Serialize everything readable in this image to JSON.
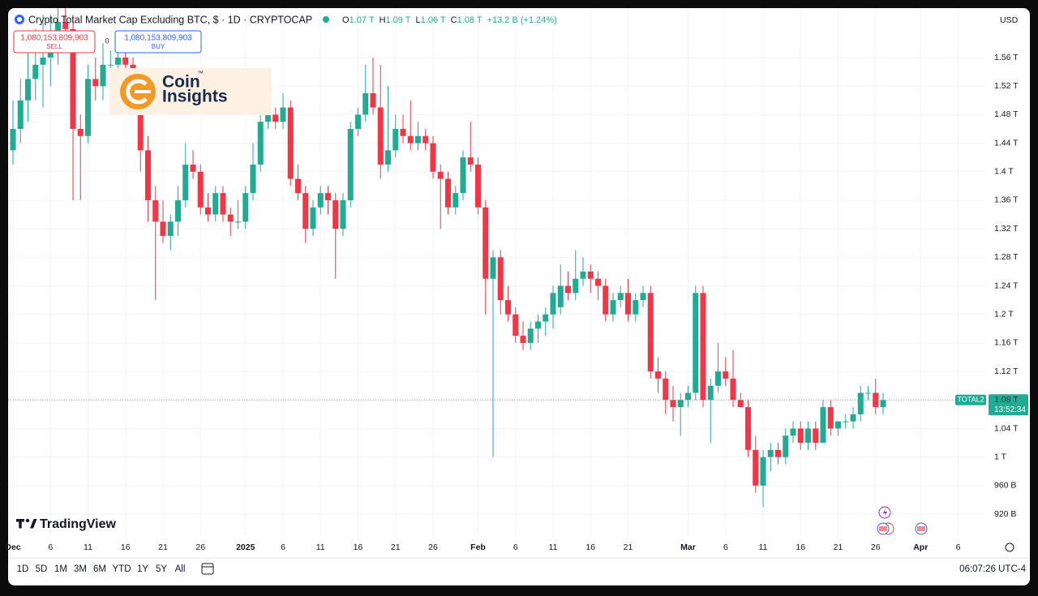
{
  "header": {
    "title": "Crypto Total Market Cap Excluding BTC, $ · 1D · CRYPTOCAP",
    "ohlc": [
      {
        "key": "O",
        "value": "1.07 T"
      },
      {
        "key": "H",
        "value": "1.09 T"
      },
      {
        "key": "L",
        "value": "1.06 T"
      },
      {
        "key": "C",
        "value": "1.08 T"
      }
    ],
    "change": "+13.2 B (+1.24%)"
  },
  "trade": {
    "sell_price": "1,080,153,809,903",
    "sell": "SELL",
    "spread": "0",
    "buy_price": "1,080,153,809,903",
    "buy": "BUY"
  },
  "watermark": {
    "line1": "Coin",
    "line2": "Insights",
    "mark": "™"
  },
  "price_scale": {
    "currency": "USD",
    "symbol": "TOTAL2",
    "last": "1.08 T",
    "countdown": "13:52:34"
  },
  "logo": "TradingView",
  "toolbar": {
    "ranges": [
      "1D",
      "5D",
      "1M",
      "3M",
      "6M",
      "YTD",
      "1Y",
      "5Y",
      "All"
    ],
    "clock": "06:07:26 UTC-4"
  },
  "chart_data": {
    "type": "candlestick",
    "up_color": "#22ab94",
    "down_color": "#f23645",
    "grid": true,
    "x": [
      "2024-12-01",
      "2024-12-02",
      "2024-12-03",
      "2024-12-04",
      "2024-12-05",
      "2024-12-06",
      "2024-12-07",
      "2024-12-08",
      "2024-12-09",
      "2024-12-10",
      "2024-12-11",
      "2024-12-12",
      "2024-12-13",
      "2024-12-14",
      "2024-12-15",
      "2024-12-16",
      "2024-12-17",
      "2024-12-18",
      "2024-12-19",
      "2024-12-20",
      "2024-12-21",
      "2024-12-22",
      "2024-12-23",
      "2024-12-24",
      "2024-12-25",
      "2024-12-26",
      "2024-12-27",
      "2024-12-28",
      "2024-12-29",
      "2024-12-30",
      "2024-12-31",
      "2025-01-01",
      "2025-01-02",
      "2025-01-03",
      "2025-01-04",
      "2025-01-05",
      "2025-01-06",
      "2025-01-07",
      "2025-01-08",
      "2025-01-09",
      "2025-01-10",
      "2025-01-11",
      "2025-01-12",
      "2025-01-13",
      "2025-01-14",
      "2025-01-15",
      "2025-01-16",
      "2025-01-17",
      "2025-01-18",
      "2025-01-19",
      "2025-01-20",
      "2025-01-21",
      "2025-01-22",
      "2025-01-23",
      "2025-01-24",
      "2025-01-25",
      "2025-01-26",
      "2025-01-27",
      "2025-01-28",
      "2025-01-29",
      "2025-01-30",
      "2025-01-31",
      "2025-02-01",
      "2025-02-02",
      "2025-02-03",
      "2025-02-04",
      "2025-02-05",
      "2025-02-06",
      "2025-02-07",
      "2025-02-08",
      "2025-02-09",
      "2025-02-10",
      "2025-02-11",
      "2025-02-12",
      "2025-02-13",
      "2025-02-14",
      "2025-02-15",
      "2025-02-16",
      "2025-02-17",
      "2025-02-18",
      "2025-02-19",
      "2025-02-20",
      "2025-02-21",
      "2025-02-22",
      "2025-02-23",
      "2025-02-24",
      "2025-02-25",
      "2025-02-26",
      "2025-02-27",
      "2025-02-28",
      "2025-03-01",
      "2025-03-02",
      "2025-03-03",
      "2025-03-04",
      "2025-03-05",
      "2025-03-06",
      "2025-03-07",
      "2025-03-08",
      "2025-03-09",
      "2025-03-10",
      "2025-03-11",
      "2025-03-12",
      "2025-03-13",
      "2025-03-14",
      "2025-03-15",
      "2025-03-16",
      "2025-03-17",
      "2025-03-18",
      "2025-03-19",
      "2025-03-20",
      "2025-03-21",
      "2025-03-22",
      "2025-03-23",
      "2025-03-24",
      "2025-03-25",
      "2025-03-26",
      "2025-03-27"
    ],
    "open": [
      1.43,
      1.46,
      1.5,
      1.53,
      1.55,
      1.56,
      1.58,
      1.61,
      1.6,
      1.46,
      1.45,
      1.53,
      1.52,
      1.55,
      1.55,
      1.56,
      1.55,
      1.52,
      1.43,
      1.36,
      1.33,
      1.31,
      1.33,
      1.36,
      1.41,
      1.4,
      1.35,
      1.34,
      1.37,
      1.34,
      1.33,
      1.33,
      1.37,
      1.41,
      1.47,
      1.48,
      1.47,
      1.49,
      1.39,
      1.37,
      1.32,
      1.35,
      1.37,
      1.36,
      1.32,
      1.36,
      1.46,
      1.48,
      1.51,
      1.49,
      1.41,
      1.43,
      1.46,
      1.45,
      1.44,
      1.45,
      1.44,
      1.4,
      1.39,
      1.35,
      1.37,
      1.42,
      1.41,
      1.35,
      1.25,
      1.28,
      1.22,
      1.2,
      1.17,
      1.16,
      1.18,
      1.19,
      1.2,
      1.21,
      1.24,
      1.23,
      1.25,
      1.26,
      1.25,
      1.24,
      1.2,
      1.22,
      1.23,
      1.2,
      1.22,
      1.23,
      1.12,
      1.11,
      1.08,
      1.07,
      1.08,
      1.09,
      1.23,
      1.08,
      1.1,
      1.12,
      1.11,
      1.08,
      1.07,
      1.01,
      0.96,
      1.0,
      1.01,
      1.0,
      1.03,
      1.04,
      1.02,
      1.04,
      1.02,
      1.07,
      1.04,
      1.05,
      1.05,
      1.06,
      1.09,
      1.09,
      1.07
    ],
    "high": [
      1.5,
      1.53,
      1.58,
      1.6,
      1.62,
      1.62,
      1.63,
      1.64,
      1.62,
      1.48,
      1.55,
      1.56,
      1.58,
      1.57,
      1.58,
      1.59,
      1.56,
      1.54,
      1.45,
      1.38,
      1.36,
      1.34,
      1.38,
      1.44,
      1.43,
      1.41,
      1.37,
      1.38,
      1.38,
      1.35,
      1.36,
      1.38,
      1.44,
      1.48,
      1.49,
      1.49,
      1.51,
      1.5,
      1.41,
      1.38,
      1.36,
      1.38,
      1.38,
      1.37,
      1.37,
      1.47,
      1.49,
      1.55,
      1.56,
      1.55,
      1.52,
      1.48,
      1.48,
      1.5,
      1.47,
      1.46,
      1.45,
      1.41,
      1.4,
      1.38,
      1.43,
      1.47,
      1.42,
      1.36,
      1.29,
      1.29,
      1.24,
      1.21,
      1.19,
      1.19,
      1.2,
      1.21,
      1.24,
      1.27,
      1.26,
      1.29,
      1.28,
      1.27,
      1.26,
      1.25,
      1.23,
      1.24,
      1.25,
      1.23,
      1.24,
      1.24,
      1.14,
      1.12,
      1.1,
      1.09,
      1.1,
      1.24,
      1.24,
      1.11,
      1.16,
      1.14,
      1.15,
      1.09,
      1.08,
      1.03,
      1.01,
      1.02,
      1.02,
      1.04,
      1.05,
      1.05,
      1.05,
      1.05,
      1.08,
      1.08,
      1.05,
      1.06,
      1.07,
      1.1,
      1.1,
      1.11,
      1.09
    ],
    "low": [
      1.41,
      1.44,
      1.47,
      1.5,
      1.49,
      1.52,
      1.55,
      1.57,
      1.36,
      1.36,
      1.44,
      1.5,
      1.5,
      1.53,
      1.54,
      1.53,
      1.5,
      1.4,
      1.33,
      1.22,
      1.3,
      1.29,
      1.31,
      1.35,
      1.39,
      1.34,
      1.33,
      1.33,
      1.33,
      1.31,
      1.32,
      1.32,
      1.36,
      1.4,
      1.46,
      1.46,
      1.46,
      1.38,
      1.36,
      1.3,
      1.31,
      1.34,
      1.34,
      1.25,
      1.31,
      1.35,
      1.45,
      1.47,
      1.48,
      1.39,
      1.4,
      1.42,
      1.44,
      1.43,
      1.43,
      1.43,
      1.39,
      1.32,
      1.34,
      1.34,
      1.36,
      1.4,
      1.34,
      1.2,
      1.0,
      1.2,
      1.19,
      1.16,
      1.15,
      1.15,
      1.16,
      1.17,
      1.18,
      1.2,
      1.22,
      1.22,
      1.24,
      1.23,
      1.22,
      1.19,
      1.19,
      1.21,
      1.19,
      1.19,
      1.21,
      1.11,
      1.09,
      1.06,
      1.05,
      1.03,
      1.07,
      1.08,
      1.07,
      1.02,
      1.09,
      1.1,
      1.07,
      1.07,
      1.0,
      0.95,
      0.93,
      0.98,
      0.99,
      0.99,
      1.02,
      1.01,
      1.01,
      1.01,
      1.02,
      1.03,
      1.03,
      1.04,
      1.04,
      1.05,
      1.08,
      1.06,
      1.06
    ],
    "close": [
      1.46,
      1.5,
      1.53,
      1.55,
      1.56,
      1.58,
      1.61,
      1.6,
      1.46,
      1.45,
      1.53,
      1.52,
      1.55,
      1.55,
      1.56,
      1.55,
      1.52,
      1.43,
      1.36,
      1.33,
      1.31,
      1.33,
      1.36,
      1.41,
      1.4,
      1.35,
      1.34,
      1.37,
      1.34,
      1.33,
      1.33,
      1.37,
      1.41,
      1.47,
      1.48,
      1.47,
      1.49,
      1.39,
      1.37,
      1.32,
      1.35,
      1.37,
      1.36,
      1.32,
      1.36,
      1.46,
      1.48,
      1.51,
      1.49,
      1.41,
      1.43,
      1.46,
      1.45,
      1.44,
      1.45,
      1.44,
      1.4,
      1.39,
      1.35,
      1.37,
      1.42,
      1.41,
      1.35,
      1.25,
      1.28,
      1.22,
      1.2,
      1.17,
      1.16,
      1.18,
      1.19,
      1.2,
      1.23,
      1.24,
      1.23,
      1.25,
      1.26,
      1.25,
      1.24,
      1.2,
      1.22,
      1.23,
      1.2,
      1.22,
      1.23,
      1.12,
      1.11,
      1.08,
      1.07,
      1.08,
      1.09,
      1.23,
      1.08,
      1.1,
      1.12,
      1.11,
      1.08,
      1.07,
      1.01,
      0.96,
      1.0,
      1.01,
      1.0,
      1.03,
      1.04,
      1.02,
      1.04,
      1.02,
      1.07,
      1.04,
      1.05,
      1.05,
      1.06,
      1.09,
      1.09,
      1.07,
      1.08
    ],
    "ylim": [
      0.8905,
      1.6066
    ],
    "yticks": [
      {
        "value": 0.92,
        "label": "920 B"
      },
      {
        "value": 0.96,
        "label": "960 B"
      },
      {
        "value": 1,
        "label": "1 T"
      },
      {
        "value": 1.04,
        "label": "1.04 T"
      },
      {
        "value": 1.08,
        "label": "1.08 T"
      },
      {
        "value": 1.12,
        "label": "1.12 T"
      },
      {
        "value": 1.16,
        "label": "1.16 T"
      },
      {
        "value": 1.2,
        "label": "1.2 T"
      },
      {
        "value": 1.24,
        "label": "1.24 T"
      },
      {
        "value": 1.28,
        "label": "1.28 T"
      },
      {
        "value": 1.32,
        "label": "1.32 T"
      },
      {
        "value": 1.36,
        "label": "1.36 T"
      },
      {
        "value": 1.4,
        "label": "1.4 T"
      },
      {
        "value": 1.44,
        "label": "1.44 T"
      },
      {
        "value": 1.48,
        "label": "1.48 T"
      },
      {
        "value": 1.52,
        "label": "1.52 T"
      },
      {
        "value": 1.56,
        "label": "1.56 T"
      }
    ],
    "xticks": [
      {
        "value": "2024-12-01",
        "label": "Dec"
      },
      {
        "value": "2024-12-06",
        "label": "6"
      },
      {
        "value": "2024-12-11",
        "label": "11"
      },
      {
        "value": "2024-12-16",
        "label": "16"
      },
      {
        "value": "2024-12-21",
        "label": "21"
      },
      {
        "value": "2024-12-26",
        "label": "26"
      },
      {
        "value": "2025-01-01",
        "label": "2025"
      },
      {
        "value": "2025-01-06",
        "label": "6"
      },
      {
        "value": "2025-01-11",
        "label": "11"
      },
      {
        "value": "2025-01-16",
        "label": "16"
      },
      {
        "value": "2025-01-21",
        "label": "21"
      },
      {
        "value": "2025-01-26",
        "label": "26"
      },
      {
        "value": "2025-02-01",
        "label": "Feb"
      },
      {
        "value": "2025-02-06",
        "label": "6"
      },
      {
        "value": "2025-02-11",
        "label": "11"
      },
      {
        "value": "2025-02-16",
        "label": "16"
      },
      {
        "value": "2025-02-21",
        "label": "21"
      },
      {
        "value": "2025-03-01",
        "label": "Mar"
      },
      {
        "value": "2025-03-06",
        "label": "6"
      },
      {
        "value": "2025-03-11",
        "label": "11"
      },
      {
        "value": "2025-03-16",
        "label": "16"
      },
      {
        "value": "2025-03-21",
        "label": "21"
      },
      {
        "value": "2025-03-26",
        "label": "26"
      },
      {
        "value": "2025-04-01",
        "label": "Apr"
      },
      {
        "value": "2025-04-06",
        "label": "6"
      }
    ]
  }
}
